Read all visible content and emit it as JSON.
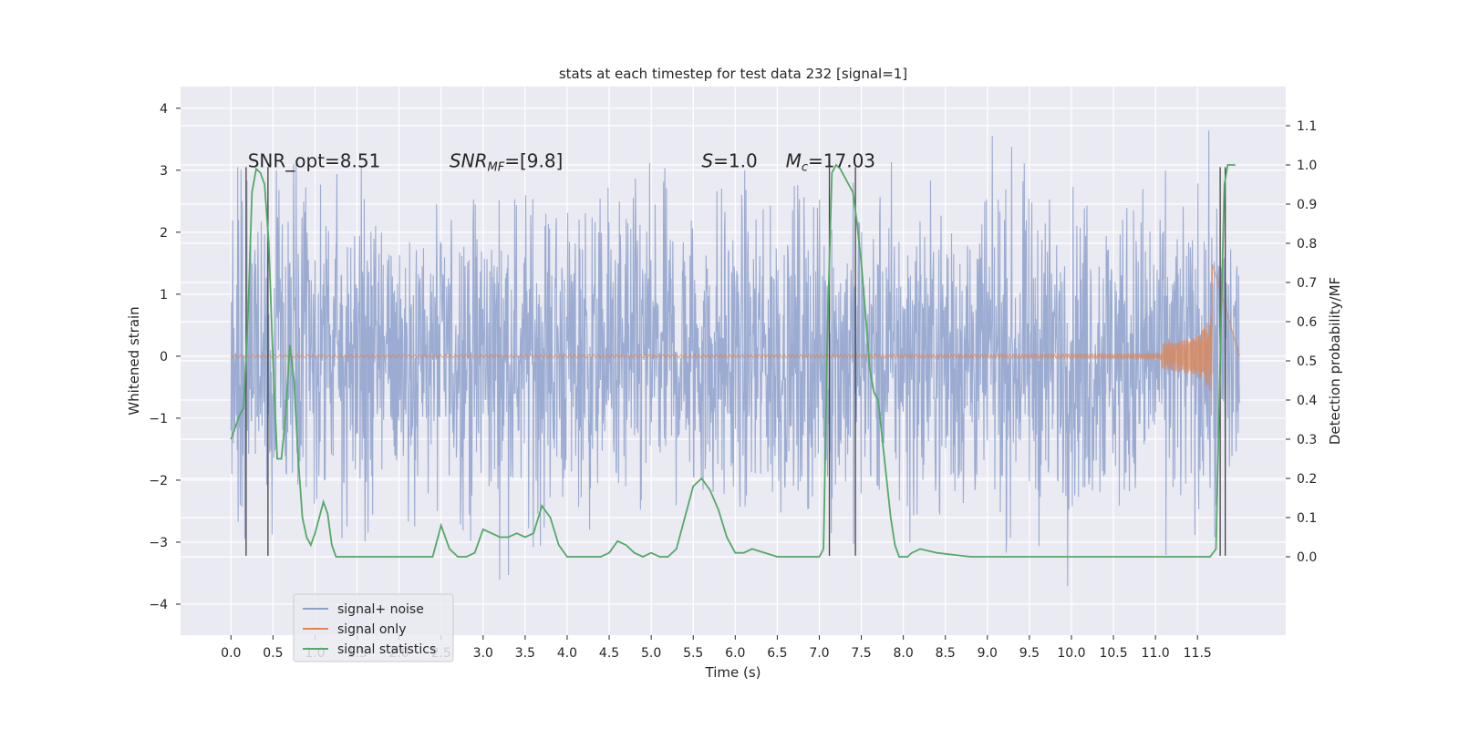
{
  "chart_data": {
    "type": "line",
    "title": "stats at each timestep for test data 232 [signal=1]",
    "xlabel": "Time (s)",
    "ylabel_left": "Whitened strain",
    "ylabel_right": "Detection probability/MF",
    "xlim": [
      -0.6,
      12.55
    ],
    "ylim_left": [
      -4.5,
      4.35
    ],
    "ylim_right": [
      -0.2,
      1.2
    ],
    "x_ticks": [
      0.0,
      0.5,
      1.0,
      1.5,
      2.0,
      2.5,
      3.0,
      3.5,
      4.0,
      4.5,
      5.0,
      5.5,
      6.0,
      6.5,
      7.0,
      7.5,
      8.0,
      8.5,
      9.0,
      9.5,
      10.0,
      10.5,
      11.0,
      11.5
    ],
    "x_tick_labels": [
      "0.0",
      "0.5",
      "1.0",
      "1.5",
      "2.0",
      "2.5",
      "3.0",
      "3.5",
      "4.0",
      "4.5",
      "5.0",
      "5.5",
      "6.0",
      "6.5",
      "7.0",
      "7.5",
      "8.0",
      "8.5",
      "9.0",
      "9.5",
      "10.0",
      "10.5",
      "11.0",
      "11.5"
    ],
    "y_left_ticks": [
      -4,
      -3,
      -2,
      -1,
      0,
      1,
      2,
      3,
      4
    ],
    "y_left_tick_labels": [
      "−4",
      "−3",
      "−2",
      "−1",
      "0",
      "1",
      "2",
      "3",
      "4"
    ],
    "y_right_ticks": [
      0.0,
      0.1,
      0.2,
      0.3,
      0.4,
      0.5,
      0.6,
      0.7,
      0.8,
      0.9,
      1.0,
      1.1
    ],
    "y_right_tick_labels": [
      "0.0",
      "0.1",
      "0.2",
      "0.3",
      "0.4",
      "0.5",
      "0.6",
      "0.7",
      "0.8",
      "0.9",
      "1.0",
      "1.1"
    ],
    "grid": true,
    "legend_placement": "lower-left",
    "legend": [
      {
        "label": "signal+ noise",
        "color": "#8da0cb"
      },
      {
        "label": "signal only",
        "color": "#dd8452"
      },
      {
        "label": "signal statistics",
        "color": "#55a868"
      }
    ],
    "annotations": [
      {
        "text": "SNR_opt=8.51",
        "x": 0.2,
        "y": 3.05
      },
      {
        "text": "SNR_MF=[9.8]",
        "x": 2.6,
        "y": 3.05
      },
      {
        "text": "S=1.0",
        "x": 5.6,
        "y": 3.05
      },
      {
        "text": "M_c=17.03",
        "x": 6.6,
        "y": 3.05
      }
    ],
    "vertical_markers": {
      "x": [
        0.18,
        0.44,
        7.12,
        7.43,
        11.77,
        11.83
      ],
      "y_range": [
        -3.22,
        3.05
      ],
      "color": "#444444"
    },
    "series": [
      {
        "name": "signal+ noise",
        "color": "#8da0cb",
        "axis": "left",
        "x_range": [
          0.0,
          12.0
        ],
        "sample_count": 2400,
        "envelope": {
          "typical_abs": 2.0,
          "max": 3.95,
          "min": -4.1
        },
        "seed": 232
      },
      {
        "name": "signal only",
        "color": "#dd8452",
        "axis": "left",
        "chirp": {
          "t_start": 0.0,
          "t_merge": 11.68,
          "t_end": 12.0,
          "amp_start": 0.02,
          "amp_peak": 1.85
        }
      },
      {
        "name": "signal statistics",
        "color": "#55a868",
        "axis": "right",
        "x": [
          0.0,
          0.1,
          0.15,
          0.2,
          0.25,
          0.3,
          0.35,
          0.4,
          0.45,
          0.5,
          0.55,
          0.6,
          0.65,
          0.7,
          0.75,
          0.8,
          0.85,
          0.9,
          0.95,
          1.0,
          1.05,
          1.1,
          1.15,
          1.2,
          1.25,
          1.3,
          1.35,
          1.4,
          1.5,
          1.6,
          1.7,
          1.8,
          1.9,
          2.0,
          2.1,
          2.2,
          2.3,
          2.4,
          2.5,
          2.6,
          2.7,
          2.8,
          2.9,
          3.0,
          3.1,
          3.2,
          3.3,
          3.4,
          3.5,
          3.6,
          3.7,
          3.8,
          3.9,
          4.0,
          4.2,
          4.4,
          4.5,
          4.6,
          4.7,
          4.8,
          4.9,
          5.0,
          5.1,
          5.2,
          5.3,
          5.4,
          5.5,
          5.6,
          5.7,
          5.8,
          5.9,
          6.0,
          6.1,
          6.2,
          6.5,
          6.8,
          7.0,
          7.05,
          7.1,
          7.15,
          7.2,
          7.25,
          7.3,
          7.35,
          7.4,
          7.45,
          7.5,
          7.55,
          7.6,
          7.65,
          7.7,
          7.75,
          7.8,
          7.85,
          7.9,
          7.95,
          8.0,
          8.05,
          8.1,
          8.2,
          8.3,
          8.4,
          8.6,
          8.8,
          9.0,
          9.5,
          10.0,
          10.5,
          11.0,
          11.5,
          11.65,
          11.72,
          11.78,
          11.82,
          11.86,
          11.9,
          11.95
        ],
        "y": [
          0.3,
          0.36,
          0.38,
          0.6,
          0.93,
          0.99,
          0.98,
          0.95,
          0.8,
          0.5,
          0.25,
          0.25,
          0.36,
          0.54,
          0.45,
          0.25,
          0.1,
          0.05,
          0.03,
          0.06,
          0.1,
          0.14,
          0.11,
          0.03,
          0.0,
          0.0,
          0.0,
          0.0,
          0.0,
          0.0,
          0.0,
          0.0,
          0.0,
          0.0,
          0.0,
          0.0,
          0.0,
          0.0,
          0.08,
          0.02,
          0.0,
          0.0,
          0.01,
          0.07,
          0.06,
          0.05,
          0.05,
          0.06,
          0.05,
          0.06,
          0.13,
          0.1,
          0.03,
          0.0,
          0.0,
          0.0,
          0.01,
          0.04,
          0.03,
          0.01,
          0.0,
          0.01,
          0.0,
          0.0,
          0.02,
          0.1,
          0.18,
          0.2,
          0.17,
          0.12,
          0.05,
          0.01,
          0.01,
          0.02,
          0.0,
          0.0,
          0.0,
          0.02,
          0.6,
          0.98,
          1.0,
          0.99,
          0.97,
          0.95,
          0.93,
          0.85,
          0.75,
          0.62,
          0.48,
          0.42,
          0.4,
          0.3,
          0.2,
          0.1,
          0.03,
          0.0,
          0.0,
          0.0,
          0.01,
          0.02,
          0.015,
          0.01,
          0.005,
          0.0,
          0.0,
          0.0,
          0.0,
          0.0,
          0.0,
          0.0,
          0.0,
          0.02,
          0.6,
          0.95,
          1.0,
          1.0,
          1.0
        ]
      }
    ]
  }
}
